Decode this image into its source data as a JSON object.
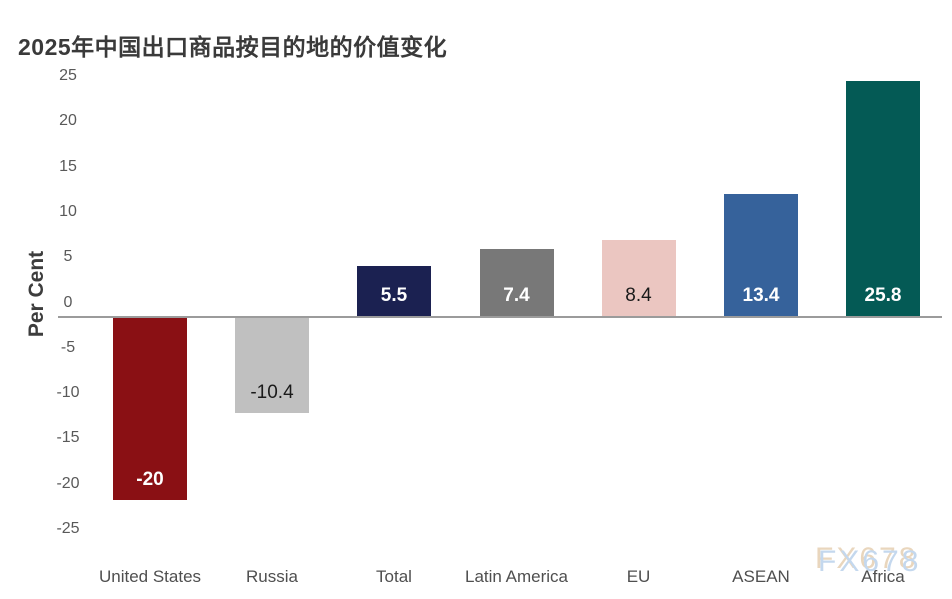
{
  "chart_data": {
    "type": "bar",
    "title": "2025年中国出口商品按目的地的价值变化",
    "ylabel": "Per Cent",
    "xlabel": "",
    "ylim": [
      -25,
      25
    ],
    "yticks": [
      25,
      20,
      15,
      10,
      5,
      0,
      -5,
      -10,
      -15,
      -20,
      -25
    ],
    "grid": false,
    "legend_position": "none",
    "categories": [
      "United States",
      "Russia",
      "Total",
      "Latin America",
      "EU",
      "ASEAN",
      "Africa"
    ],
    "values": [
      -20,
      -10.4,
      5.5,
      7.4,
      8.4,
      13.4,
      25.8
    ],
    "value_labels": [
      "-20",
      "-10.4",
      "5.5",
      "7.4",
      "8.4",
      "13.4",
      "25.8"
    ],
    "bar_colors": [
      "#8a1014",
      "#c0c0c0",
      "#1b2151",
      "#787878",
      "#ebc6c1",
      "#36629b",
      "#045a55"
    ],
    "value_label_colors": [
      "#ffffff",
      "#1a1a1a",
      "#ffffff",
      "#ffffff",
      "#1a1a1a",
      "#ffffff",
      "#ffffff"
    ]
  },
  "watermark": {
    "text": "FX678",
    "color_main": "#c4d8ee",
    "color_shadow": "#e9d6bd"
  },
  "colors": {
    "title_text": "#3a3a3a",
    "axis_line": "#9b9b9b",
    "tick_text": "#595959",
    "background": "#ffffff"
  }
}
